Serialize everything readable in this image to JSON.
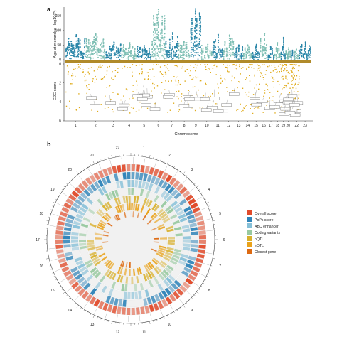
{
  "panel_a": {
    "letter": "a",
    "ylabel_top": "Age at menarche –log10(P)",
    "ylabel_bottom": "G2G score",
    "xlabel": "Chromosome",
    "colors": {
      "odd": "#2a86a8",
      "even": "#7fbfb4",
      "score": "#e0ac1c",
      "baseline": "#b08a2a"
    }
  },
  "panel_b": {
    "letter": "b",
    "colors": {
      "overall": "#e14b2b",
      "pops": "#2f84b9",
      "abc": "#86c0d8",
      "coding": "#98c9a0",
      "pqtl": "#d8b02c",
      "eqtl": "#e9a21a",
      "closest": "#dd6a12"
    }
  },
  "legend": {
    "items": [
      {
        "label": "Overall score",
        "color": "#e14b2b"
      },
      {
        "label": "PoPs score",
        "color": "#2f84b9"
      },
      {
        "label": "ABC enhancer",
        "color": "#86c0d8"
      },
      {
        "label": "Coding variants",
        "color": "#98c9a0"
      },
      {
        "label": "pQTL",
        "color": "#d8b02c"
      },
      {
        "label": "eQTL",
        "color": "#e9a21a"
      },
      {
        "label": "Closest gene",
        "color": "#dd6a12"
      }
    ]
  },
  "chart_data": [
    {
      "type": "scatter",
      "title": "",
      "xlabel": "Chromosome",
      "ylabel": "Age at menarche –log10(P)",
      "categories": [
        "1",
        "2",
        "3",
        "4",
        "5",
        "6",
        "7",
        "8",
        "9",
        "10",
        "11",
        "12",
        "13",
        "14",
        "15",
        "16",
        "17",
        "18",
        "19",
        "20",
        "21",
        "22",
        "23"
      ],
      "x_tick_labels": [
        "1",
        "2",
        "3",
        "4",
        "5",
        "6",
        "7",
        "8",
        "9",
        "10",
        "11",
        "12",
        "13",
        "14",
        "15",
        "16",
        "17",
        "18",
        "19",
        "20",
        "22",
        "23"
      ],
      "yticks": [
        0,
        50,
        100,
        150
      ],
      "ylim": [
        0,
        175
      ],
      "peak_values": [
        85,
        88,
        60,
        58,
        48,
        172,
        92,
        62,
        174,
        52,
        86,
        84,
        50,
        50,
        52,
        88,
        44,
        58,
        76,
        40,
        32,
        36,
        60
      ]
    },
    {
      "type": "scatter",
      "ylabel": "G2G score",
      "yticks": [
        0,
        2,
        4,
        6
      ],
      "ylim": [
        0,
        6
      ],
      "note": "reversed axis below Manhattan plot"
    },
    {
      "type": "heatmap",
      "layout": "circular",
      "ring_labels": [
        "Overall score",
        "PoPs score",
        "ABC enhancer",
        "Coding variants",
        "pQTL",
        "eQTL",
        "Closest gene"
      ],
      "chromosome_labels": [
        "1",
        "2",
        "3",
        "4",
        "5",
        "6",
        "7",
        "8",
        "9",
        "10",
        "11",
        "12",
        "13",
        "14",
        "15",
        "16",
        "17",
        "18",
        "19",
        "20",
        "21",
        "22"
      ]
    }
  ]
}
